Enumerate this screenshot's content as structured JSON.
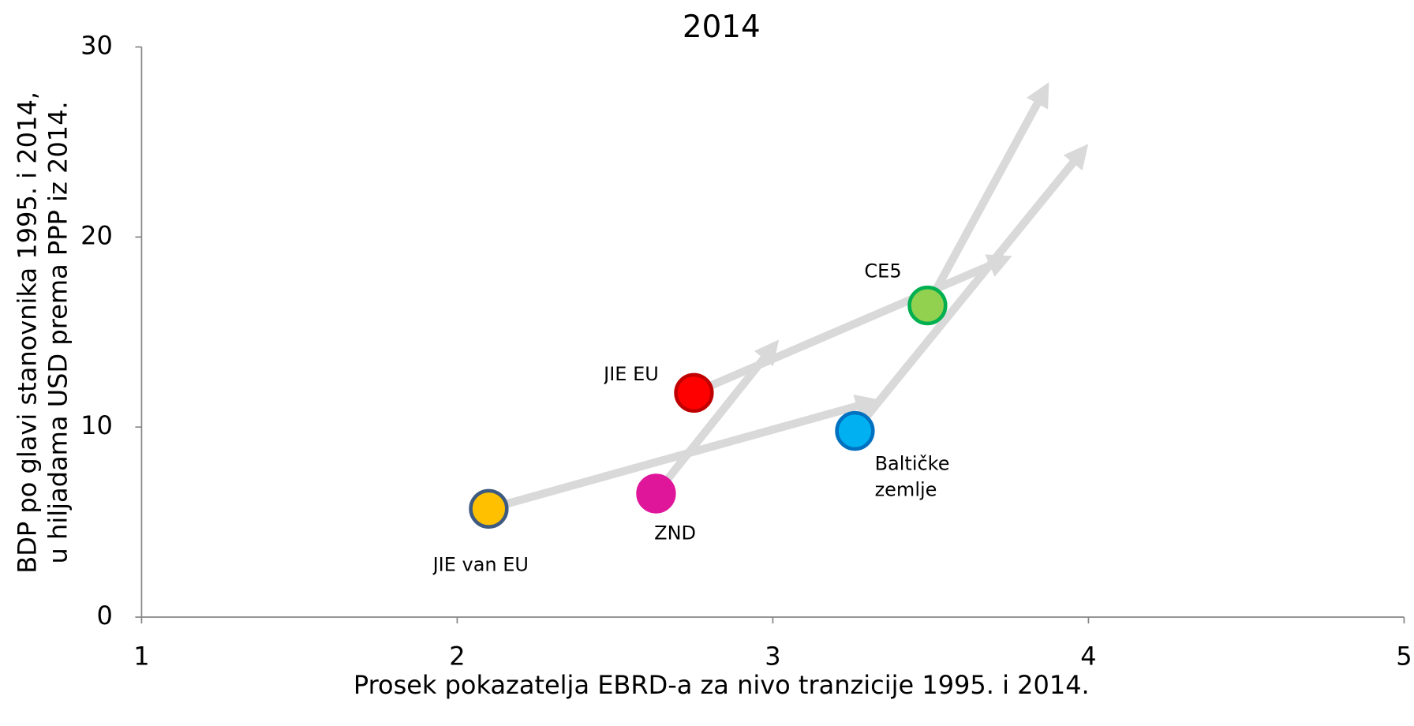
{
  "chart_data": {
    "type": "scatter",
    "title": "2014",
    "x_label": "Prosek pokazatelja EBRD-a za nivo tranzicije 1995. i 2014.",
    "y_label": [
      "BDP po glavi stanovnika 1995. i 2014,",
      "u hiljadama USD prema PPP iz 2014."
    ],
    "xlim": [
      1,
      5
    ],
    "xticks": [
      1,
      2,
      3,
      4,
      5
    ],
    "ylim": [
      0,
      30
    ],
    "yticks": [
      0,
      10,
      20,
      30
    ],
    "arrow_color": "#d9d9d9",
    "series": [
      {
        "name": "JIE van EU",
        "color": "#ffc000",
        "edge": "#3d5a80",
        "x": 2.1,
        "y": 5.7,
        "x_end": 3.31,
        "y_end": 11.3
      },
      {
        "name": "ZND",
        "color": "#e0169a",
        "edge": "#e0169a",
        "x": 2.63,
        "y": 6.5,
        "x_end": 3.0,
        "y_end": 14.2
      },
      {
        "name": "JIE EU",
        "color": "#ff0000",
        "edge": "#c00000",
        "x": 2.75,
        "y": 11.8,
        "x_end": 3.73,
        "y_end": 18.8
      },
      {
        "name": "Baltičke zemlje",
        "color": "#00b0f0",
        "edge": "#0070c0",
        "x": 3.26,
        "y": 9.8,
        "x_end": 3.98,
        "y_end": 24.5
      },
      {
        "name": "CE5",
        "color": "#92d050",
        "edge": "#00b050",
        "x": 3.49,
        "y": 16.4,
        "x_end": 3.86,
        "y_end": 27.7
      }
    ]
  }
}
